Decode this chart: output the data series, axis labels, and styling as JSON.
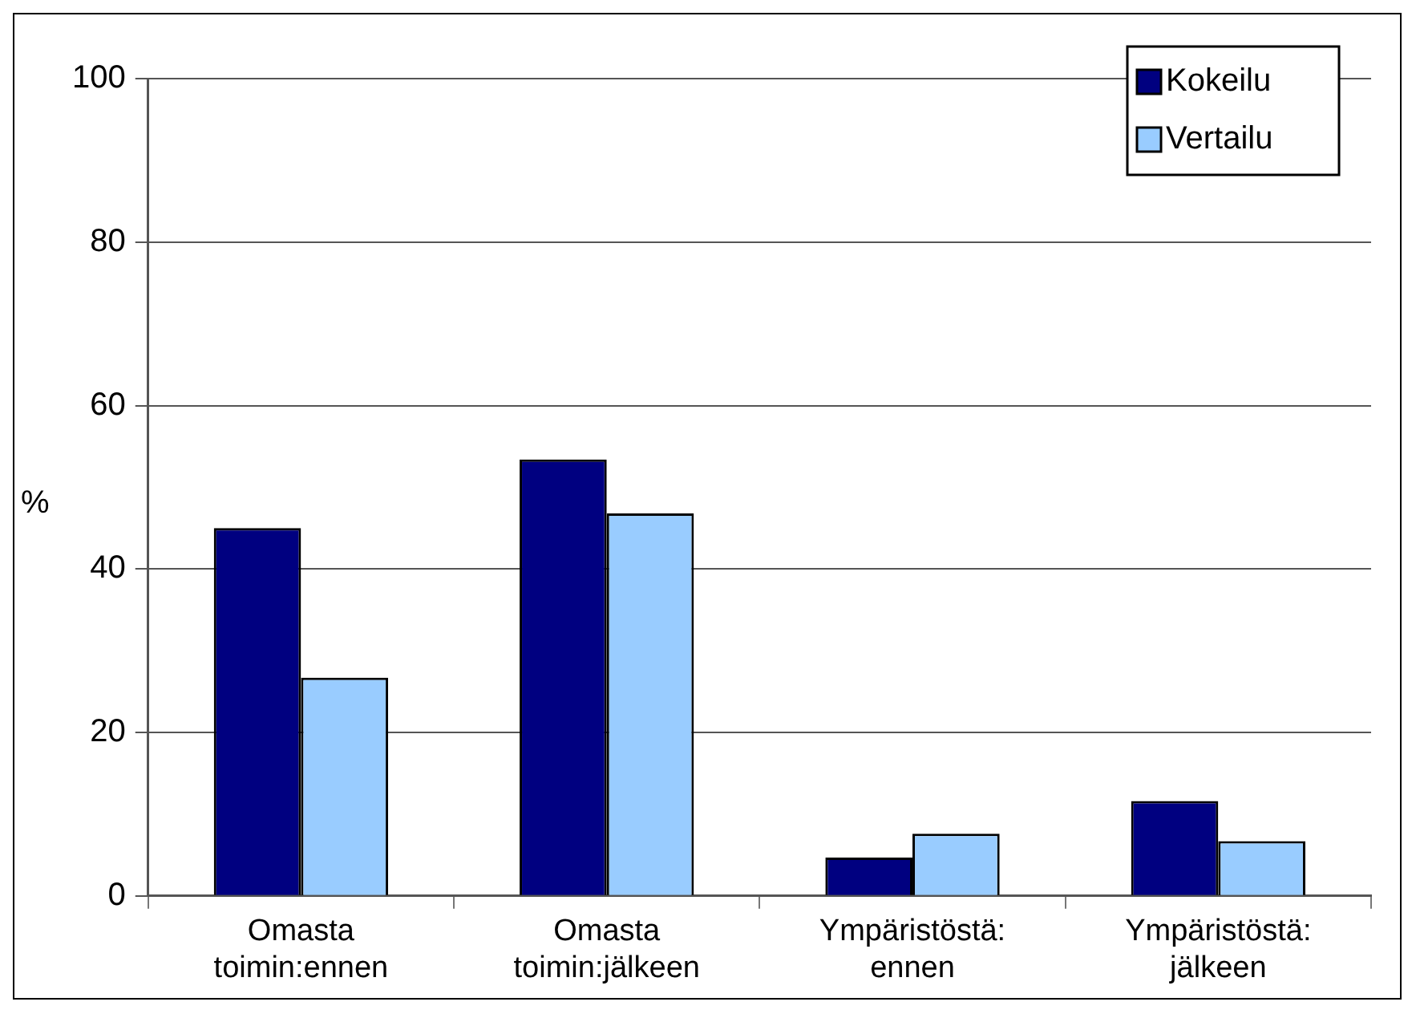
{
  "chart_data": {
    "type": "bar",
    "ylabel": "%",
    "categories": [
      "Omasta toimin:ennen",
      "Omasta toimin:jälkeen",
      "Ympäristöstä: ennen",
      "Ympäristöstä: jälkeen"
    ],
    "series": [
      {
        "name": "Kokeilu",
        "color": "#000080",
        "values": [
          45,
          53.4,
          4.7,
          11.6
        ]
      },
      {
        "name": "Vertailu",
        "color": "#99ccff",
        "values": [
          26.7,
          46.8,
          7.6,
          6.7
        ]
      }
    ],
    "ylim": [
      0,
      100
    ],
    "yticks": [
      0,
      20,
      40,
      60,
      80,
      100
    ],
    "grid": "y",
    "legend": "top right"
  }
}
